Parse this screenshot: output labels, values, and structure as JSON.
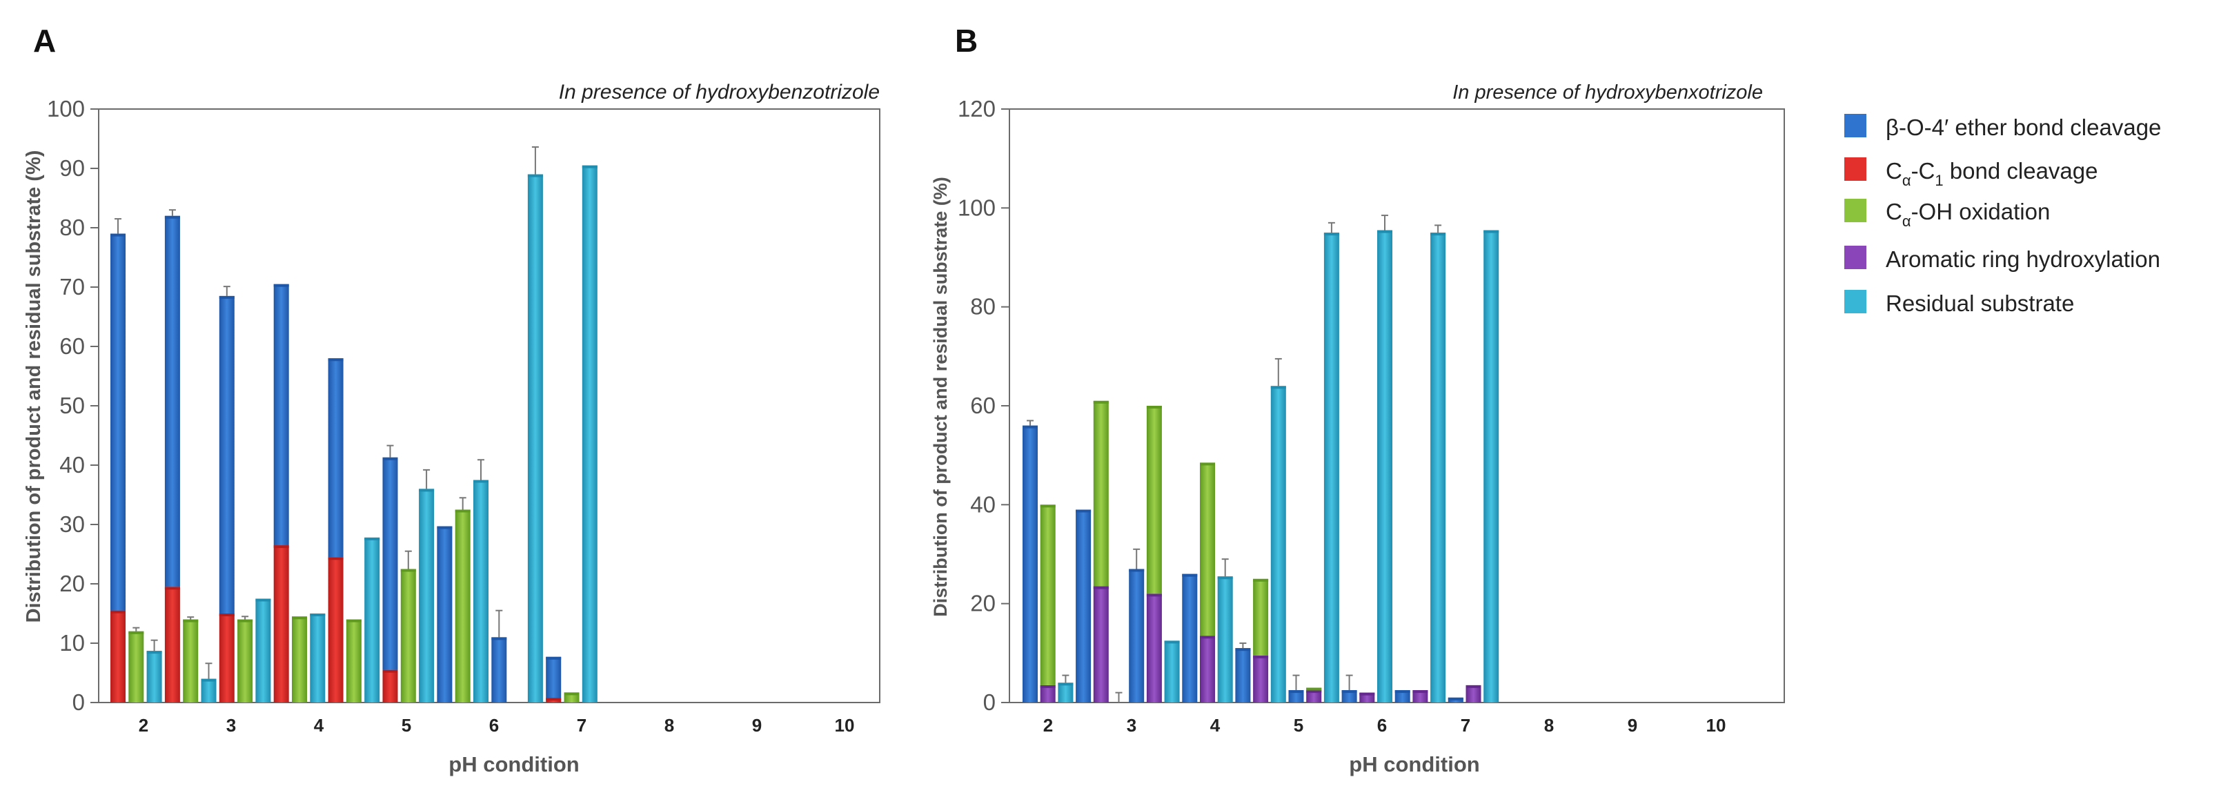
{
  "chart_data": [
    {
      "panel_label": "A",
      "type": "bar",
      "annotation": "In presence of hydroxybenzotrizole",
      "xlabel": "pH condition",
      "ylabel": "Distribution of product and residual substrate (%)",
      "ylim": [
        0,
        100
      ],
      "yticks": [
        "0",
        "10",
        "20",
        "30",
        "40",
        "50",
        "60",
        "70",
        "80",
        "90",
        "100"
      ],
      "categories": [
        "2",
        "3",
        "4",
        "5",
        "6",
        "7",
        "8",
        "9",
        "10"
      ],
      "bar_groups": [
        {
          "stack": [
            {
              "series": "ca_c1",
              "value": 15.5
            },
            {
              "series": "beta_o4",
              "value": 63.5,
              "error": 2.5
            }
          ]
        },
        {
          "stack": [
            {
              "series": "ca_oh",
              "value": 12,
              "error": 0.6
            }
          ]
        },
        {
          "stack": [
            {
              "series": "residual",
              "value": 8.7,
              "error": 1.8
            }
          ]
        },
        {
          "stack": [
            {
              "series": "ca_c1",
              "value": 19.5
            },
            {
              "series": "beta_o4",
              "value": 62.5,
              "error": 1
            }
          ]
        },
        {
          "stack": [
            {
              "series": "ca_oh",
              "value": 14,
              "error": 0.4
            }
          ]
        },
        {
          "stack": [
            {
              "series": "residual",
              "value": 4,
              "error": 2.6
            }
          ]
        },
        {
          "stack": [
            {
              "series": "ca_c1",
              "value": 15
            },
            {
              "series": "beta_o4",
              "value": 53.5,
              "error": 1.6
            }
          ]
        },
        {
          "stack": [
            {
              "series": "ca_oh",
              "value": 14,
              "error": 0.5
            }
          ]
        },
        {
          "stack": [
            {
              "series": "residual",
              "value": 17.5
            }
          ]
        },
        {
          "stack": [
            {
              "series": "ca_c1",
              "value": 26.5
            },
            {
              "series": "beta_o4",
              "value": 44
            }
          ]
        },
        {
          "stack": [
            {
              "series": "ca_oh",
              "value": 14.5
            }
          ]
        },
        {
          "stack": [
            {
              "series": "residual",
              "value": 15
            }
          ]
        },
        {
          "stack": [
            {
              "series": "ca_c1",
              "value": 24.5
            },
            {
              "series": "beta_o4",
              "value": 33.5
            }
          ]
        },
        {
          "stack": [
            {
              "series": "ca_oh",
              "value": 14
            }
          ]
        },
        {
          "stack": [
            {
              "series": "residual",
              "value": 27.8
            }
          ]
        },
        {
          "stack": [
            {
              "series": "ca_c1",
              "value": 5.5
            },
            {
              "series": "beta_o4",
              "value": 35.8,
              "error": 2
            }
          ]
        },
        {
          "stack": [
            {
              "series": "ca_oh",
              "value": 22.5,
              "error": 3
            }
          ]
        },
        {
          "stack": [
            {
              "series": "residual",
              "value": 36,
              "error": 3.2
            }
          ]
        },
        {
          "stack": [
            {
              "series": "beta_o4",
              "value": 29.7
            }
          ]
        },
        {
          "stack": [
            {
              "series": "ca_oh",
              "value": 32.5,
              "error": 2
            }
          ]
        },
        {
          "stack": [
            {
              "series": "residual",
              "value": 37.5,
              "error": 3.4
            }
          ]
        },
        {
          "stack": [
            {
              "series": "beta_o4",
              "value": 11,
              "error": 4.5
            }
          ]
        },
        {
          "stack": []
        },
        {
          "stack": [
            {
              "series": "residual",
              "value": 89,
              "error": 4.6
            }
          ]
        },
        {
          "stack": [
            {
              "series": "ca_c1",
              "value": 0.8
            },
            {
              "series": "beta_o4",
              "value": 6.9
            }
          ]
        },
        {
          "stack": [
            {
              "series": "ca_oh",
              "value": 1.7
            }
          ]
        },
        {
          "stack": [
            {
              "series": "residual",
              "value": 90.5
            }
          ]
        }
      ]
    },
    {
      "panel_label": "B",
      "type": "bar",
      "annotation": "In presence of hydroxybenxotrizole",
      "xlabel": "pH condition",
      "ylabel": "Distribution of product and residual substrate (%)",
      "ylim": [
        0,
        120
      ],
      "yticks": [
        "0",
        "20",
        "40",
        "60",
        "80",
        "100",
        "120"
      ],
      "categories": [
        "2",
        "3",
        "4",
        "5",
        "6",
        "7",
        "8",
        "9",
        "10"
      ],
      "bar_groups": [
        {
          "stack": [
            {
              "series": "beta_o4",
              "value": 56,
              "error": 1
            }
          ]
        },
        {
          "stack": [
            {
              "series": "aromatic",
              "value": 3.5
            },
            {
              "series": "ca_oh",
              "value": 36.5
            }
          ]
        },
        {
          "stack": [
            {
              "series": "residual",
              "value": 4,
              "error": 1.5
            }
          ]
        },
        {
          "stack": [
            {
              "series": "beta_o4",
              "value": 39
            }
          ]
        },
        {
          "stack": [
            {
              "series": "aromatic",
              "value": 23.5
            },
            {
              "series": "ca_oh",
              "value": 37.5
            }
          ]
        },
        {
          "stack": [
            {
              "series": "residual",
              "value": 0,
              "error": 2
            }
          ]
        },
        {
          "stack": [
            {
              "series": "beta_o4",
              "value": 27,
              "error": 4
            }
          ]
        },
        {
          "stack": [
            {
              "series": "aromatic",
              "value": 22
            },
            {
              "series": "ca_oh",
              "value": 38
            }
          ]
        },
        {
          "stack": [
            {
              "series": "residual",
              "value": 12.5
            }
          ]
        },
        {
          "stack": [
            {
              "series": "beta_o4",
              "value": 26
            }
          ]
        },
        {
          "stack": [
            {
              "series": "aromatic",
              "value": 13.5
            },
            {
              "series": "ca_oh",
              "value": 35
            }
          ]
        },
        {
          "stack": [
            {
              "series": "residual",
              "value": 25.5,
              "error": 3.5
            }
          ]
        },
        {
          "stack": [
            {
              "series": "beta_o4",
              "value": 11,
              "error": 1
            }
          ]
        },
        {
          "stack": [
            {
              "series": "aromatic",
              "value": 9.5
            },
            {
              "series": "ca_oh",
              "value": 15.5
            }
          ]
        },
        {
          "stack": [
            {
              "series": "residual",
              "value": 64,
              "error": 5.5
            }
          ]
        },
        {
          "stack": [
            {
              "series": "beta_o4",
              "value": 2.5,
              "error": 3
            }
          ]
        },
        {
          "stack": [
            {
              "series": "aromatic",
              "value": 2.5
            },
            {
              "series": "ca_oh",
              "value": 0.5
            }
          ]
        },
        {
          "stack": [
            {
              "series": "residual",
              "value": 95,
              "error": 2
            }
          ]
        },
        {
          "stack": [
            {
              "series": "beta_o4",
              "value": 2.5,
              "error": 3
            }
          ]
        },
        {
          "stack": [
            {
              "series": "aromatic",
              "value": 2
            }
          ]
        },
        {
          "stack": [
            {
              "series": "residual",
              "value": 95.5,
              "error": 3
            }
          ]
        },
        {
          "stack": [
            {
              "series": "beta_o4",
              "value": 2.5
            }
          ]
        },
        {
          "stack": [
            {
              "series": "aromatic",
              "value": 2.5
            }
          ]
        },
        {
          "stack": [
            {
              "series": "residual",
              "value": 95,
              "error": 1.5
            }
          ]
        },
        {
          "stack": [
            {
              "series": "beta_o4",
              "value": 1
            }
          ]
        },
        {
          "stack": [
            {
              "series": "aromatic",
              "value": 3.5
            }
          ]
        },
        {
          "stack": [
            {
              "series": "residual",
              "value": 95.5
            }
          ]
        }
      ]
    }
  ],
  "series": [
    {
      "key": "beta_o4",
      "color": "#2f75d0",
      "dark": "#1e56a8"
    },
    {
      "key": "ca_c1",
      "color": "#e3302c",
      "dark": "#b71c1a"
    },
    {
      "key": "ca_oh",
      "color": "#8cc33c",
      "dark": "#5f9a1f"
    },
    {
      "key": "aromatic",
      "color": "#8a45b8",
      "dark": "#64288e"
    },
    {
      "key": "residual",
      "color": "#37b6d6",
      "dark": "#1f8db0"
    }
  ],
  "legend": {
    "items": [
      {
        "series": "beta_o4",
        "pre": "β-O-4′ ether bond cleavage"
      },
      {
        "series": "ca_c1",
        "pre": "C",
        "sub1": "α",
        "mid": "-C",
        "sub2": "1",
        "post": " bond cleavage"
      },
      {
        "series": "ca_oh",
        "pre": "C",
        "sub1": "α",
        "mid": "-OH oxidation"
      },
      {
        "series": "aromatic",
        "pre": "Aromatic ring hydroxylation"
      },
      {
        "series": "residual",
        "pre": "Residual substrate"
      }
    ]
  }
}
